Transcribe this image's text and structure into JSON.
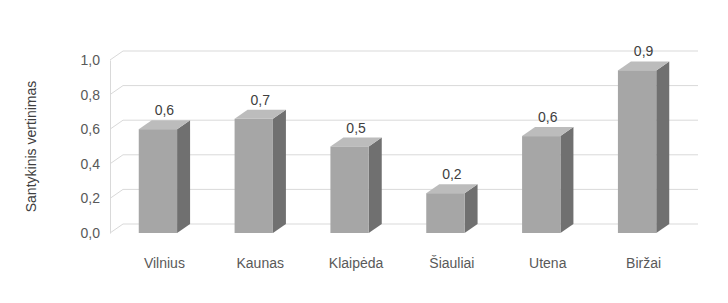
{
  "chart_data": {
    "type": "bar",
    "y_label": "Santykinis vertinimas",
    "categories": [
      "Vilnius",
      "Kaunas",
      "Klaipėda",
      "Šiauliai",
      "Utena",
      "Biržai"
    ],
    "values": [
      0.6,
      0.66,
      0.5,
      0.23,
      0.56,
      0.94
    ],
    "value_labels": [
      "0,6",
      "0,7",
      "0,5",
      "0,2",
      "0,6",
      "0,9"
    ],
    "color": "#a6a6a6",
    "ylim": [
      0,
      1
    ],
    "yticks": [
      {
        "value": 0,
        "label": "0,0"
      },
      {
        "value": 0.2,
        "label": "0,2"
      },
      {
        "value": 0.4,
        "label": "0,4"
      },
      {
        "value": 0.6,
        "label": "0,6"
      },
      {
        "value": 0.8,
        "label": "0,8"
      },
      {
        "value": 1,
        "label": "1,0"
      }
    ],
    "grid": true,
    "data_labels": true
  }
}
